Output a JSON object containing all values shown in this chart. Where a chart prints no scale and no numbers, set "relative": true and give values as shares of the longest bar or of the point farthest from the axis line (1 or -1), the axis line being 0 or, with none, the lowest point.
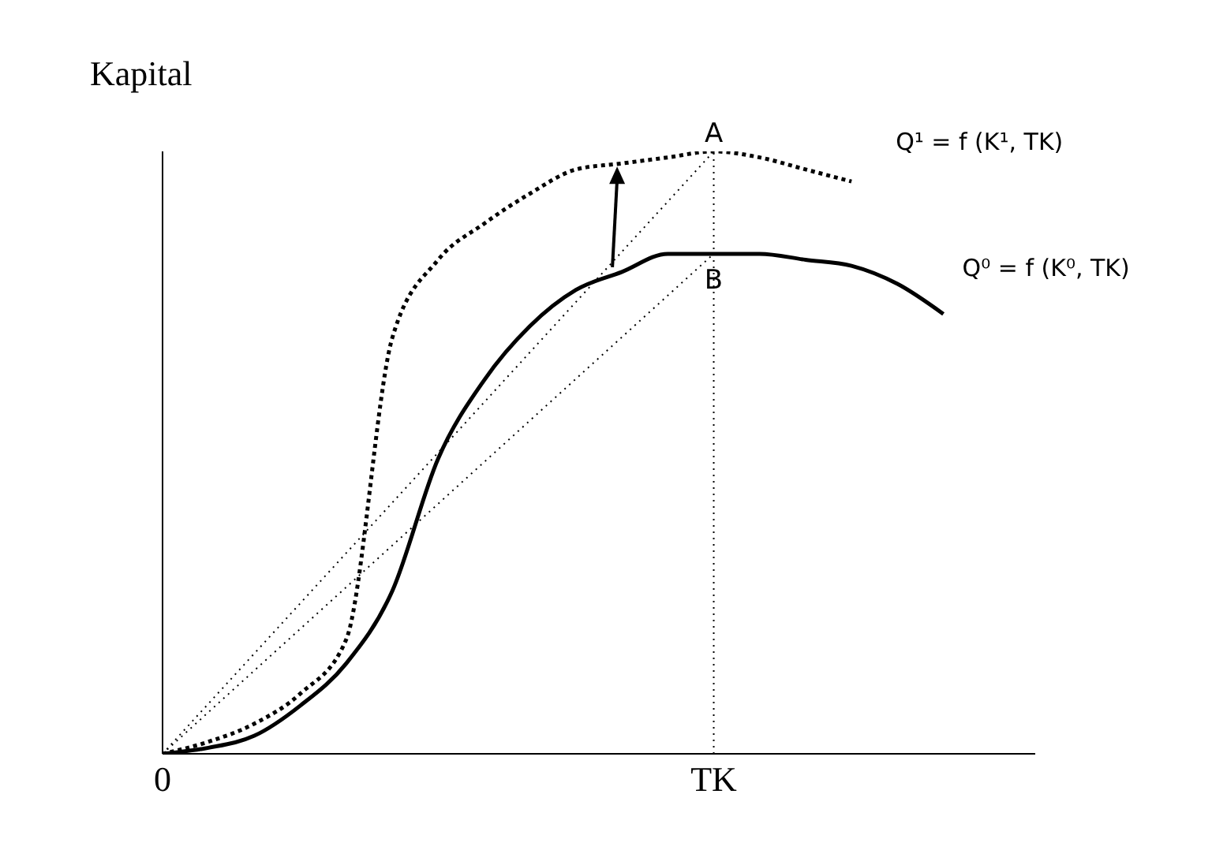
{
  "chart_data": {
    "type": "line",
    "relative": true,
    "ylabel": "Kapital",
    "marker": "none",
    "categories": [
      "0",
      null,
      null,
      null,
      null,
      null,
      null,
      null,
      null,
      null,
      null,
      null,
      "TK",
      null,
      null,
      null,
      null,
      null,
      null,
      null
    ],
    "series": [
      {
        "name": "Q¹ = f (K¹, TK)",
        "color": "#000000",
        "line_style": "dotted",
        "values": [
          0,
          0.02,
          0.05,
          0.1,
          0.19,
          0.69,
          0.82,
          0.88,
          0.93,
          0.97,
          0.98,
          0.99,
          1,
          0.99,
          0.97,
          0.95,
          null,
          null,
          null,
          null
        ]
      },
      {
        "name": "Q⁰ = f (K⁰, TK)",
        "color": "#000000",
        "line_style": "solid",
        "values": [
          0,
          0.01,
          0.03,
          0.08,
          0.15,
          0.27,
          0.49,
          0.62,
          0.71,
          0.77,
          0.8,
          0.83,
          0.83,
          0.83,
          0.82,
          0.81,
          0.78,
          0.73,
          null,
          null
        ]
      },
      {
        "color": "#000000",
        "line_style": "dotted",
        "values": [
          0,
          null,
          null,
          null,
          null,
          null,
          null,
          null,
          null,
          null,
          null,
          null,
          1,
          null,
          null,
          null,
          null,
          null,
          null,
          null
        ]
      },
      {
        "color": "#000000",
        "line_style": "dotted",
        "values": [
          0,
          null,
          null,
          null,
          null,
          null,
          null,
          null,
          null,
          null,
          null,
          null,
          0.83,
          null,
          null,
          null,
          null,
          null,
          null,
          null
        ]
      }
    ],
    "ref_lines": [
      {
        "axis": "x",
        "value": "TK",
        "line_style": "dotted",
        "color": "#000000"
      }
    ],
    "annotations": [
      {
        "text": "A",
        "x": "TK",
        "y": 1
      },
      {
        "text": "B",
        "x": "TK",
        "y": 0.83
      }
    ]
  }
}
